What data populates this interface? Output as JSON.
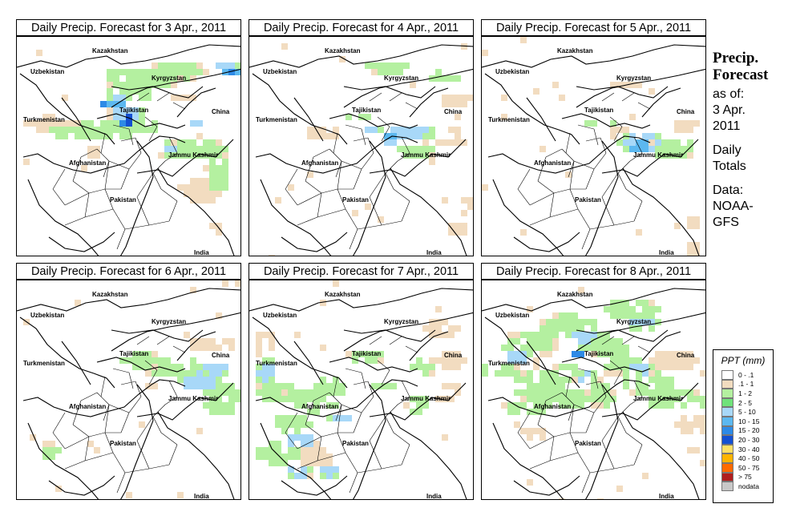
{
  "panels": [
    {
      "title": "Daily Precip. Forecast for  3 Apr., 2011"
    },
    {
      "title": "Daily Precip. Forecast for  4 Apr., 2011"
    },
    {
      "title": "Daily Precip. Forecast for  5 Apr., 2011"
    },
    {
      "title": "Daily Precip. Forecast for  6 Apr., 2011"
    },
    {
      "title": "Daily Precip. Forecast for  7 Apr., 2011"
    },
    {
      "title": "Daily Precip. Forecast for  8 Apr., 2011"
    }
  ],
  "map_labels": {
    "kazakhstan": "Kazakhstan",
    "uzbekistan": "Uzbekistan",
    "kyrgyzstan": "Kyrgyzstan",
    "tajikistan": "Tajikistan",
    "turkmenistan": "Turkmenistan",
    "china": "China",
    "afghanistan": "Afghanistan",
    "jammu_kashmir": "Jammu Kashmir",
    "pakistan": "Pakistan",
    "india": "India"
  },
  "side_info": {
    "title_line1": "Precip.",
    "title_line2": "Forecast",
    "as_of_label": "as of:",
    "as_of_date": "3 Apr.",
    "as_of_year": "2011",
    "totals_line1": "Daily",
    "totals_line2": "Totals",
    "data_label": "Data:",
    "data_source_line1": "NOAA-",
    "data_source_line2": "GFS"
  },
  "legend": {
    "title": "PPT (mm)",
    "items": [
      {
        "label": "0 - .1",
        "color": "#ffffff"
      },
      {
        "label": ".1 - 1",
        "color": "#f2dcc0"
      },
      {
        "label": "1 - 2",
        "color": "#b4f0a0"
      },
      {
        "label": "2 - 5",
        "color": "#6fe27a"
      },
      {
        "label": "5 - 10",
        "color": "#a8d8f8"
      },
      {
        "label": "10 - 15",
        "color": "#5cb8f0"
      },
      {
        "label": "15 - 20",
        "color": "#2e8ae6"
      },
      {
        "label": "20 - 30",
        "color": "#1450d2"
      },
      {
        "label": "30 - 40",
        "color": "#ffe066"
      },
      {
        "label": "40 - 50",
        "color": "#ffb400"
      },
      {
        "label": "50 - 75",
        "color": "#ff6a00"
      },
      {
        "label": "> 75",
        "color": "#b01e1e"
      },
      {
        "label": "nodata",
        "color": "#c8c8c8"
      }
    ]
  }
}
